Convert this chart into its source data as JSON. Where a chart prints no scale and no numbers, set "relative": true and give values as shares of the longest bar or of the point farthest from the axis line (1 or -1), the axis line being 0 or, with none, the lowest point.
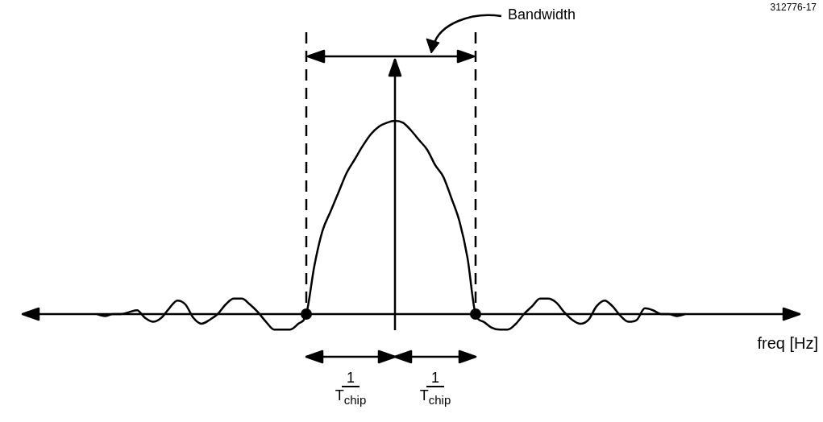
{
  "chart_data": {
    "type": "line",
    "relative": true,
    "xlabel": "freq [Hz]",
    "annotations": [
      "Bandwidth",
      "1",
      "T$_{chip}$",
      "1",
      "T$_{chip}$",
      "312776-17"
    ],
    "categories": [
      null,
      null,
      null,
      null,
      null,
      null,
      null,
      null,
      null,
      null,
      null,
      null,
      null,
      null,
      null,
      null,
      null,
      null,
      null,
      null,
      null,
      null,
      null,
      null,
      null,
      null,
      null,
      null,
      null,
      null,
      null,
      null,
      null,
      null,
      null,
      null,
      null,
      null,
      null,
      null,
      null,
      null,
      null,
      null,
      null,
      null,
      null,
      null,
      null,
      null,
      null,
      null,
      null,
      null,
      null,
      null,
      null,
      null,
      null,
      null,
      null,
      null,
      null,
      null,
      null,
      null,
      null,
      null,
      null,
      null,
      null,
      null,
      null,
      null
    ],
    "series": [
      {
        "color": "#000000",
        "values": [
          0,
          -0.01,
          0,
          0,
          0.01,
          0.02,
          -0.02,
          -0.04,
          -0.02,
          0.03,
          0.07,
          0.05,
          -0.02,
          -0.05,
          -0.03,
          0,
          0.05,
          0.08,
          0.08,
          0.05,
          0.01,
          -0.04,
          -0.08,
          -0.08,
          -0.08,
          -0.05,
          0,
          0.25,
          0.43,
          0.53,
          0.63,
          0.73,
          0.8,
          0.87,
          0.93,
          0.97,
          0.99,
          1,
          0.99,
          0.95,
          0.9,
          0.85,
          0.77,
          0.71,
          0.6,
          0.48,
          0.29,
          0,
          -0.04,
          -0.07,
          -0.08,
          -0.08,
          -0.05,
          0,
          0.04,
          0.08,
          0.08,
          0.06,
          0.01,
          -0.03,
          -0.05,
          -0.03,
          0.04,
          0.07,
          0.04,
          -0.01,
          -0.04,
          -0.03,
          0.03,
          0.02,
          0,
          0,
          -0.01,
          0
        ]
      }
    ]
  }
}
